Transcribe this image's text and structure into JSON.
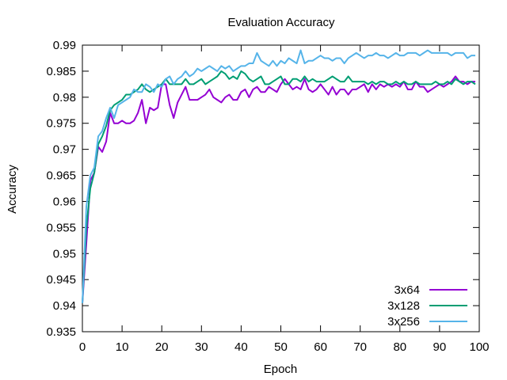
{
  "chart_data": {
    "type": "line",
    "title": "Evaluation Accuracy",
    "xlabel": "Epoch",
    "ylabel": "Accuracy",
    "xlim": [
      0,
      100
    ],
    "ylim": [
      0.935,
      0.99
    ],
    "xticks": [
      0,
      10,
      20,
      30,
      40,
      50,
      60,
      70,
      80,
      90,
      100
    ],
    "yticks": [
      0.935,
      0.94,
      0.945,
      0.95,
      0.955,
      0.96,
      0.965,
      0.97,
      0.975,
      0.98,
      0.985,
      0.99
    ],
    "xtick_labels": [
      "0",
      "10",
      "20",
      "30",
      "40",
      "50",
      "60",
      "70",
      "80",
      "90",
      "100"
    ],
    "ytick_labels": [
      "0.935",
      "0.94",
      "0.945",
      "0.95",
      "0.955",
      "0.96",
      "0.965",
      "0.97",
      "0.975",
      "0.98",
      "0.985",
      "0.99"
    ],
    "grid": false,
    "legend_position": "bottom-right",
    "x": [
      0,
      1,
      2,
      3,
      4,
      5,
      6,
      7,
      8,
      9,
      10,
      11,
      12,
      13,
      14,
      15,
      16,
      17,
      18,
      19,
      20,
      21,
      22,
      23,
      24,
      25,
      26,
      27,
      28,
      29,
      30,
      31,
      32,
      33,
      34,
      35,
      36,
      37,
      38,
      39,
      40,
      41,
      42,
      43,
      44,
      45,
      46,
      47,
      48,
      49,
      50,
      51,
      52,
      53,
      54,
      55,
      56,
      57,
      58,
      59,
      60,
      61,
      62,
      63,
      64,
      65,
      66,
      67,
      68,
      69,
      70,
      71,
      72,
      73,
      74,
      75,
      76,
      77,
      78,
      79,
      80,
      81,
      82,
      83,
      84,
      85,
      86,
      87,
      88,
      89,
      90,
      91,
      92,
      93,
      94,
      95,
      96,
      97,
      98,
      99
    ],
    "series": [
      {
        "name": "3x64",
        "color": "#9400d3",
        "values": [
          0.9405,
          0.952,
          0.964,
          0.9655,
          0.9705,
          0.9695,
          0.9715,
          0.977,
          0.975,
          0.975,
          0.9755,
          0.975,
          0.975,
          0.9755,
          0.977,
          0.9795,
          0.975,
          0.978,
          0.9775,
          0.978,
          0.9825,
          0.9825,
          0.9785,
          0.976,
          0.979,
          0.9805,
          0.982,
          0.9795,
          0.9795,
          0.9795,
          0.98,
          0.9805,
          0.9815,
          0.98,
          0.9795,
          0.979,
          0.98,
          0.9805,
          0.9795,
          0.9795,
          0.981,
          0.9815,
          0.98,
          0.9815,
          0.982,
          0.981,
          0.981,
          0.982,
          0.9815,
          0.981,
          0.9825,
          0.9835,
          0.9825,
          0.9815,
          0.982,
          0.9815,
          0.9835,
          0.9815,
          0.981,
          0.9815,
          0.9825,
          0.9815,
          0.9805,
          0.982,
          0.9805,
          0.9815,
          0.9815,
          0.9805,
          0.9815,
          0.9815,
          0.982,
          0.9825,
          0.981,
          0.9825,
          0.9815,
          0.9825,
          0.982,
          0.9825,
          0.982,
          0.9825,
          0.982,
          0.983,
          0.9815,
          0.9815,
          0.983,
          0.982,
          0.982,
          0.981,
          0.9815,
          0.982,
          0.9825,
          0.982,
          0.9825,
          0.983,
          0.984,
          0.983,
          0.983,
          0.9825,
          0.983,
          0.983
        ]
      },
      {
        "name": "3x128",
        "color": "#009e73",
        "values": [
          0.9405,
          0.955,
          0.9625,
          0.9655,
          0.971,
          0.9725,
          0.9745,
          0.9775,
          0.9785,
          0.979,
          0.9795,
          0.9805,
          0.9805,
          0.981,
          0.9815,
          0.9825,
          0.9815,
          0.981,
          0.9815,
          0.982,
          0.9825,
          0.9835,
          0.9825,
          0.9825,
          0.9825,
          0.9825,
          0.9835,
          0.9825,
          0.9825,
          0.983,
          0.9835,
          0.9825,
          0.983,
          0.9835,
          0.984,
          0.985,
          0.9845,
          0.9835,
          0.984,
          0.9835,
          0.985,
          0.9845,
          0.9835,
          0.983,
          0.9835,
          0.984,
          0.9825,
          0.9825,
          0.983,
          0.9835,
          0.984,
          0.9825,
          0.9825,
          0.9835,
          0.9835,
          0.983,
          0.984,
          0.983,
          0.9835,
          0.983,
          0.983,
          0.983,
          0.9835,
          0.984,
          0.9835,
          0.983,
          0.983,
          0.984,
          0.983,
          0.983,
          0.983,
          0.983,
          0.9825,
          0.983,
          0.9825,
          0.983,
          0.983,
          0.9825,
          0.9825,
          0.983,
          0.9825,
          0.983,
          0.9825,
          0.9825,
          0.983,
          0.9825,
          0.9825,
          0.9825,
          0.9825,
          0.983,
          0.9825,
          0.9825,
          0.983,
          0.9825,
          0.9835,
          0.983,
          0.9825,
          0.983,
          0.983,
          0.9825
        ]
      },
      {
        "name": "3x256",
        "color": "#56b4e9",
        "values": [
          0.9405,
          0.959,
          0.965,
          0.9665,
          0.9725,
          0.9735,
          0.976,
          0.978,
          0.976,
          0.9785,
          0.979,
          0.9795,
          0.98,
          0.9815,
          0.981,
          0.981,
          0.9825,
          0.982,
          0.981,
          0.9825,
          0.982,
          0.9835,
          0.984,
          0.9825,
          0.9835,
          0.984,
          0.985,
          0.984,
          0.9845,
          0.9855,
          0.985,
          0.9855,
          0.986,
          0.9855,
          0.985,
          0.986,
          0.9855,
          0.986,
          0.985,
          0.9855,
          0.986,
          0.986,
          0.9865,
          0.9865,
          0.9885,
          0.987,
          0.9865,
          0.986,
          0.987,
          0.986,
          0.987,
          0.9865,
          0.9875,
          0.987,
          0.9865,
          0.989,
          0.9865,
          0.987,
          0.987,
          0.9875,
          0.988,
          0.9875,
          0.9875,
          0.987,
          0.9875,
          0.9875,
          0.9865,
          0.9875,
          0.988,
          0.9885,
          0.988,
          0.9875,
          0.988,
          0.988,
          0.9885,
          0.988,
          0.988,
          0.9875,
          0.988,
          0.9885,
          0.988,
          0.988,
          0.9885,
          0.9885,
          0.9885,
          0.988,
          0.9885,
          0.989,
          0.9885,
          0.9885,
          0.9885,
          0.9885,
          0.9885,
          0.988,
          0.9885,
          0.9885,
          0.9885,
          0.9875,
          0.988,
          0.988
        ]
      }
    ]
  }
}
